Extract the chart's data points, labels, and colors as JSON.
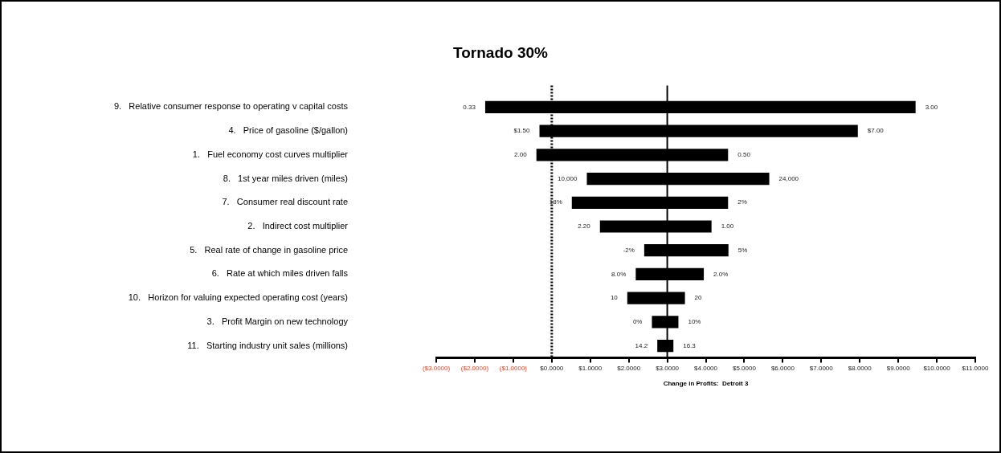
{
  "chart_data": {
    "type": "bar",
    "orientation": "horizontal",
    "title": "Tornado 30%",
    "xlabel": "Change in Profits:  Detroit 3",
    "categories": [
      "9.   Relative consumer response to operating v capital costs",
      "4.   Price of gasoline ($/gallon)",
      "1.   Fuel economy cost curves multiplier",
      "8.   1st year miles driven (miles)",
      "7.   Consumer real discount rate",
      "2.   Indirect cost multiplier",
      "5.   Real rate of change in gasoline price",
      "6.   Rate at which miles driven falls",
      "10.   Horizon for valuing expected operating cost (years)",
      "3.   Profit Margin on new technology",
      "11.   Starting industry unit sales (millions)"
    ],
    "base": [
      -1.75,
      -0.34,
      -0.42,
      0.89,
      0.5,
      1.23,
      2.38,
      2.16,
      1.94,
      2.58,
      2.72
    ],
    "values": [
      11.22,
      8.31,
      5.02,
      4.78,
      4.1,
      2.94,
      2.23,
      1.81,
      1.54,
      0.73,
      0.46
    ],
    "color": "#000000",
    "xlim": [
      -3,
      11
    ],
    "xticks": [
      {
        "value": -3,
        "label": "($3.0000)"
      },
      {
        "value": -2,
        "label": "($2.0000)"
      },
      {
        "value": -1,
        "label": "($1.0000)"
      },
      {
        "value": 0,
        "label": "$0.0000"
      },
      {
        "value": 1,
        "label": "$1.0000"
      },
      {
        "value": 2,
        "label": "$2.0000"
      },
      {
        "value": 3,
        "label": "$3.0000"
      },
      {
        "value": 4,
        "label": "$4.0000"
      },
      {
        "value": 5,
        "label": "$5.0000"
      },
      {
        "value": 6,
        "label": "$6.0000"
      },
      {
        "value": 7,
        "label": "$7.0000"
      },
      {
        "value": 8,
        "label": "$8.0000"
      },
      {
        "value": 9,
        "label": "$9.0000"
      },
      {
        "value": 10,
        "label": "$10.0000"
      },
      {
        "value": 11,
        "label": "$11.0000"
      }
    ],
    "grid": false,
    "legend": false,
    "ref_lines": [
      {
        "axis": "x",
        "value": 0,
        "line_style": "dotted",
        "color": "#000000"
      },
      {
        "axis": "x",
        "value": 3,
        "line_style": "solid",
        "color": "#000000"
      }
    ],
    "annotations": [
      {
        "text": "0.33",
        "x": -1.75,
        "y": "9.   Relative consumer response to operating v capital costs"
      },
      {
        "text": "3.00",
        "x": 9.47,
        "y": "9.   Relative consumer response to operating v capital costs"
      },
      {
        "text": "$1.50",
        "x": -0.34,
        "y": "4.   Price of gasoline ($/gallon)"
      },
      {
        "text": "$7.00",
        "x": 7.97,
        "y": "4.   Price of gasoline ($/gallon)"
      },
      {
        "text": "2.00",
        "x": -0.42,
        "y": "1.   Fuel economy cost curves multiplier"
      },
      {
        "text": "0.50",
        "x": 4.6,
        "y": "1.   Fuel economy cost curves multiplier"
      },
      {
        "text": "10,000",
        "x": 0.89,
        "y": "8.   1st year miles driven (miles)"
      },
      {
        "text": "24,000",
        "x": 5.67,
        "y": "8.   1st year miles driven (miles)"
      },
      {
        "text": "18%",
        "x": 0.5,
        "y": "7.   Consumer real discount rate"
      },
      {
        "text": "2%",
        "x": 4.6,
        "y": "7.   Consumer real discount rate"
      },
      {
        "text": "2.20",
        "x": 1.23,
        "y": "2.   Indirect cost multiplier"
      },
      {
        "text": "1.00",
        "x": 4.17,
        "y": "2.   Indirect cost multiplier"
      },
      {
        "text": "-2%",
        "x": 2.38,
        "y": "5.   Real rate of change in gasoline price"
      },
      {
        "text": "5%",
        "x": 4.61,
        "y": "5.   Real rate of change in gasoline price"
      },
      {
        "text": "8.0%",
        "x": 2.16,
        "y": "6.   Rate at which miles driven falls"
      },
      {
        "text": "2.0%",
        "x": 3.97,
        "y": "6.   Rate at which miles driven falls"
      },
      {
        "text": "10",
        "x": 1.94,
        "y": "10.   Horizon for valuing expected operating cost (years)"
      },
      {
        "text": "20",
        "x": 3.48,
        "y": "10.   Horizon for valuing expected operating cost (years)"
      },
      {
        "text": "0%",
        "x": 2.58,
        "y": "3.   Profit Margin on new technology"
      },
      {
        "text": "10%",
        "x": 3.31,
        "y": "3.   Profit Margin on new technology"
      },
      {
        "text": "14.2",
        "x": 2.72,
        "y": "11.   Starting industry unit sales (millions)"
      },
      {
        "text": "16.3",
        "x": 3.18,
        "y": "11.   Starting industry unit sales (millions)"
      }
    ]
  }
}
